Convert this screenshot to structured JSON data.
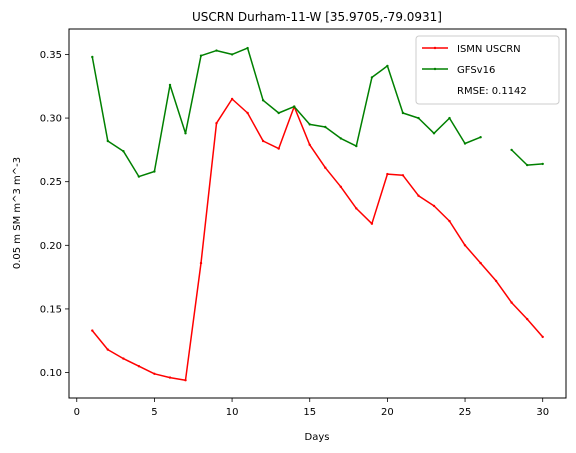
{
  "chart_data": {
    "type": "line",
    "title": "USCRN Durham-11-W [35.9705,-79.0931]",
    "xlabel": "Days",
    "ylabel": "0.05 m SM m^3 m^-3",
    "xlim": [
      -0.5,
      31.5
    ],
    "ylim": [
      0.08,
      0.37
    ],
    "xticks": [
      0,
      5,
      10,
      15,
      20,
      25,
      30
    ],
    "yticks": [
      0.1,
      0.15,
      0.2,
      0.25,
      0.3,
      0.35
    ],
    "xtick_labels": [
      "0",
      "5",
      "10",
      "15",
      "20",
      "25",
      "30"
    ],
    "ytick_labels": [
      "0.10",
      "0.15",
      "0.20",
      "0.25",
      "0.30",
      "0.35"
    ],
    "grid": false,
    "legend_position": "top-right",
    "series": [
      {
        "name": "ISMN USCRN",
        "color": "#ff0000",
        "x": [
          1,
          2,
          3,
          4,
          5,
          6,
          7,
          8,
          9,
          10,
          11,
          12,
          13,
          14,
          15,
          16,
          17,
          18,
          19,
          20,
          21,
          22,
          23,
          24,
          25,
          26,
          27,
          28,
          29,
          30
        ],
        "y": [
          0.133,
          0.118,
          0.111,
          0.105,
          0.099,
          0.096,
          0.094,
          0.186,
          0.296,
          0.315,
          0.304,
          0.282,
          0.276,
          0.309,
          0.279,
          0.261,
          0.246,
          0.229,
          0.217,
          0.256,
          0.255,
          0.239,
          0.231,
          0.219,
          0.2,
          0.186,
          0.172,
          0.155,
          0.142,
          0.128
        ]
      },
      {
        "name": "GFSv16",
        "color": "#008000",
        "x": [
          1,
          2,
          3,
          4,
          5,
          6,
          7,
          8,
          9,
          10,
          11,
          12,
          13,
          14,
          15,
          16,
          17,
          18,
          19,
          20,
          21,
          22,
          23,
          24,
          25,
          26,
          27,
          28,
          29,
          30
        ],
        "y": [
          0.348,
          0.282,
          0.274,
          0.254,
          0.258,
          0.326,
          0.288,
          0.349,
          0.353,
          0.35,
          0.355,
          0.314,
          0.304,
          0.309,
          0.295,
          0.293,
          0.284,
          0.278,
          0.332,
          0.341,
          0.304,
          0.3,
          0.288,
          0.3,
          0.28,
          0.285,
          null,
          0.275,
          0.263,
          0.264
        ]
      }
    ],
    "annotations": [
      "RMSE: 0.1142"
    ]
  }
}
